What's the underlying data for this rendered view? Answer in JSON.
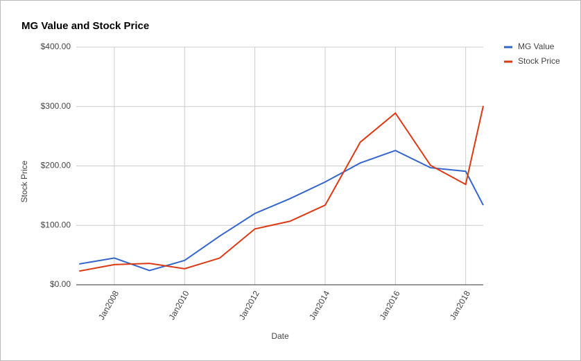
{
  "chart_data": {
    "type": "line",
    "title": "MG Value and Stock Price",
    "x_label": "Date",
    "y_label": "Stock Price",
    "x": [
      "2007-01",
      "2008-01",
      "2009-01",
      "2010-01",
      "2011-01",
      "2012-01",
      "2013-01",
      "2014-01",
      "2015-01",
      "2016-01",
      "2017-01",
      "2018-01",
      "2018-07"
    ],
    "series": [
      {
        "name": "MG Value",
        "color": "#3366cc",
        "values": [
          35,
          45,
          24,
          41,
          82,
          120,
          145,
          173,
          205,
          226,
          197,
          191,
          134
        ]
      },
      {
        "name": "Stock Price",
        "color": "#dc3912",
        "values": [
          23,
          34,
          36,
          27,
          45,
          94,
          107,
          134,
          240,
          289,
          201,
          169,
          301
        ]
      }
    ],
    "xlim": [
      "2006-12",
      "2018-07"
    ],
    "xticks": [
      {
        "value": "2008-01",
        "label": "Jan2008"
      },
      {
        "value": "2010-01",
        "label": "Jan2010"
      },
      {
        "value": "2012-01",
        "label": "Jan2012"
      },
      {
        "value": "2014-01",
        "label": "Jan2014"
      },
      {
        "value": "2016-01",
        "label": "Jan2016"
      },
      {
        "value": "2018-01",
        "label": "Jan2018"
      }
    ],
    "ylim": [
      0,
      400
    ],
    "yticks": [
      {
        "value": 0,
        "label": "$0.00"
      },
      {
        "value": 100,
        "label": "$100.00"
      },
      {
        "value": 200,
        "label": "$200.00"
      },
      {
        "value": 300,
        "label": "$300.00"
      },
      {
        "value": 400,
        "label": "$400.00"
      }
    ],
    "grid": true,
    "legend": "right"
  }
}
